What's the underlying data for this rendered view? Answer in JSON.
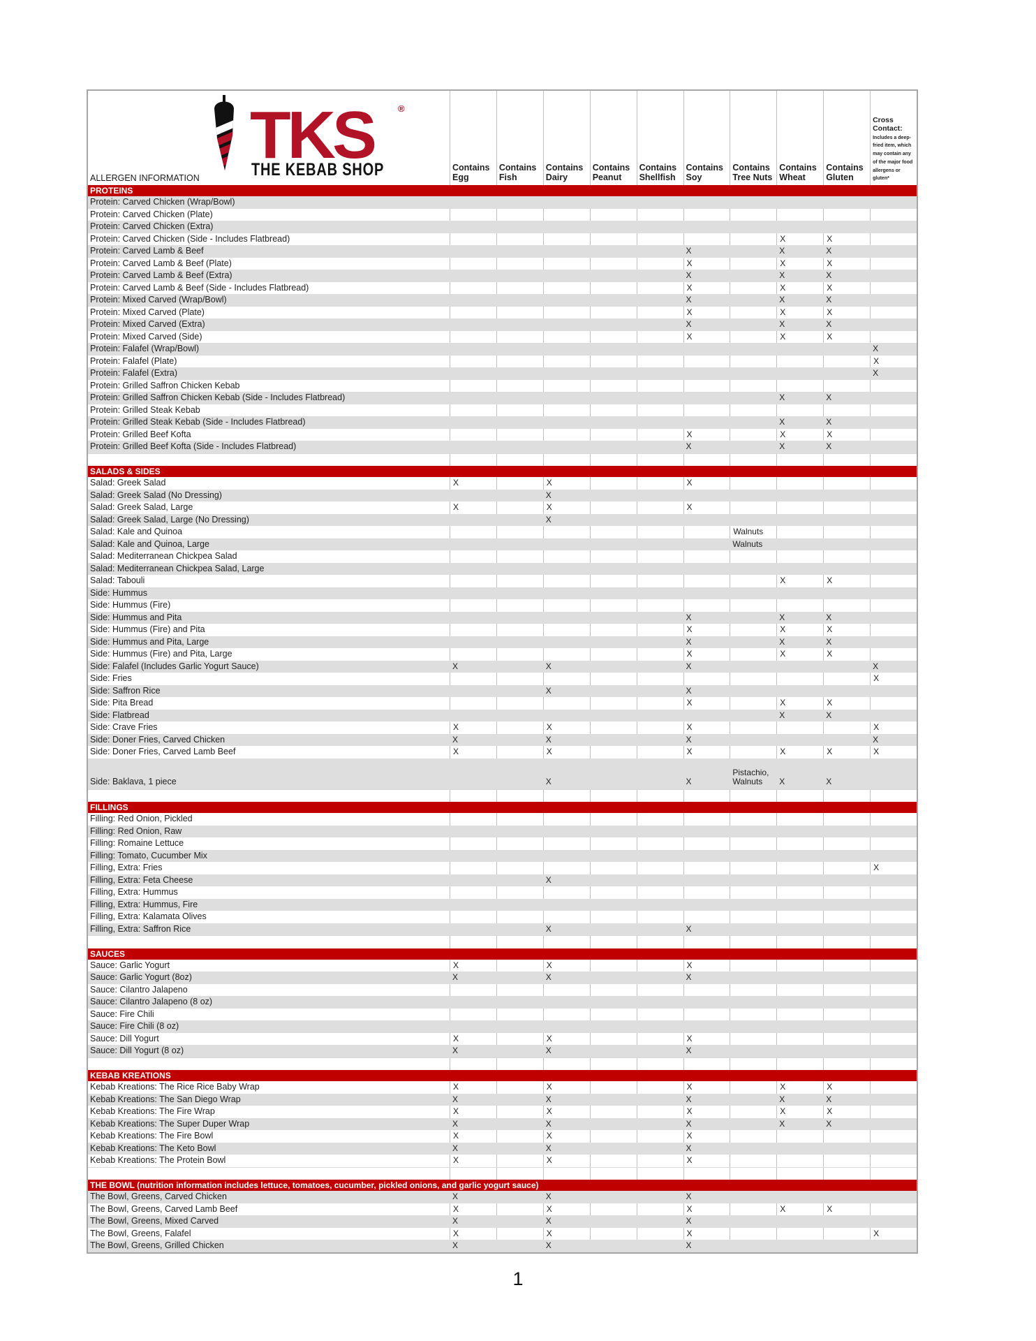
{
  "page": {
    "number": "1"
  },
  "colors": {
    "section_bar_red": "#c00000",
    "logo_red": "#b11226",
    "row_band_gray": "#dedede",
    "grid_line": "#bfbfbf",
    "outer_border": "#a6a6a6"
  },
  "logo": {
    "brand": "TKS",
    "reg": "®",
    "name": "THE KEBAB SHOP",
    "icon": "doner-kebab-icon"
  },
  "header": {
    "left_label": "ALLERGEN INFORMATION",
    "columns": [
      {
        "line1": "Contains",
        "line2": "Egg"
      },
      {
        "line1": "Contains",
        "line2": "Fish"
      },
      {
        "line1": "Contains",
        "line2": "Dairy"
      },
      {
        "line1": "Contains",
        "line2": "Peanut"
      },
      {
        "line1": "Contains",
        "line2": "Shellfish"
      },
      {
        "line1": "Contains",
        "line2": "Soy"
      },
      {
        "line1": "Contains",
        "line2": "Tree Nuts"
      },
      {
        "line1": "Contains",
        "line2": "Wheat"
      },
      {
        "line1": "Contains",
        "line2": "Gluten"
      }
    ],
    "cross": {
      "title": "Cross Contact:",
      "note": "Includes a deep-fried item, which may contain any of the major food allergens or gluten*"
    }
  },
  "allergen_keys": [
    "egg",
    "fish",
    "dairy",
    "peanut",
    "shellfish",
    "soy",
    "tree_nuts",
    "wheat",
    "gluten",
    "cross"
  ],
  "sections": [
    {
      "title": "PROTEINS",
      "start_shade": "gray",
      "rows": [
        {
          "label": "Protein: Carved Chicken (Wrap/Bowl)",
          "marks": {}
        },
        {
          "label": "Protein: Carved Chicken (Plate)",
          "marks": {}
        },
        {
          "label": "Protein: Carved Chicken (Extra)",
          "marks": {}
        },
        {
          "label": "Protein: Carved Chicken (Side - Includes Flatbread)",
          "marks": {
            "wheat": "X",
            "gluten": "X"
          }
        },
        {
          "label": "Protein: Carved Lamb & Beef",
          "marks": {
            "soy": "X",
            "wheat": "X",
            "gluten": "X"
          }
        },
        {
          "label": "Protein: Carved Lamb & Beef (Plate)",
          "marks": {
            "soy": "X",
            "wheat": "X",
            "gluten": "X"
          }
        },
        {
          "label": "Protein: Carved Lamb & Beef (Extra)",
          "marks": {
            "soy": "X",
            "wheat": "X",
            "gluten": "X"
          }
        },
        {
          "label": "Protein: Carved Lamb & Beef (Side - Includes Flatbread)",
          "marks": {
            "soy": "X",
            "wheat": "X",
            "gluten": "X"
          }
        },
        {
          "label": "Protein: Mixed Carved (Wrap/Bowl)",
          "marks": {
            "soy": "X",
            "wheat": "X",
            "gluten": "X"
          }
        },
        {
          "label": "Protein: Mixed Carved (Plate)",
          "marks": {
            "soy": "X",
            "wheat": "X",
            "gluten": "X"
          }
        },
        {
          "label": "Protein: Mixed Carved (Extra)",
          "marks": {
            "soy": "X",
            "wheat": "X",
            "gluten": "X"
          }
        },
        {
          "label": "Protein: Mixed Carved (Side)",
          "marks": {
            "soy": "X",
            "wheat": "X",
            "gluten": "X"
          }
        },
        {
          "label": "Protein: Falafel (Wrap/Bowl)",
          "marks": {
            "cross": "X"
          }
        },
        {
          "label": "Protein: Falafel (Plate)",
          "marks": {
            "cross": "X"
          }
        },
        {
          "label": "Protein: Falafel (Extra)",
          "marks": {
            "cross": "X"
          }
        },
        {
          "label": "Protein: Grilled Saffron Chicken Kebab",
          "marks": {}
        },
        {
          "label": "Protein: Grilled Saffron Chicken Kebab (Side - Includes Flatbread)",
          "marks": {
            "wheat": "X",
            "gluten": "X"
          }
        },
        {
          "label": "Protein: Grilled Steak Kebab",
          "marks": {}
        },
        {
          "label": "Protein: Grilled Steak Kebab (Side - Includes Flatbread)",
          "marks": {
            "wheat": "X",
            "gluten": "X"
          }
        },
        {
          "label": "Protein: Grilled Beef Kofta",
          "marks": {
            "soy": "X",
            "wheat": "X",
            "gluten": "X"
          }
        },
        {
          "label": "Protein: Grilled Beef Kofta (Side - Includes Flatbread)",
          "marks": {
            "soy": "X",
            "wheat": "X",
            "gluten": "X"
          }
        }
      ]
    },
    {
      "title": "SALADS & SIDES",
      "start_shade": "white",
      "rows": [
        {
          "label": "Salad: Greek Salad",
          "marks": {
            "egg": "X",
            "dairy": "X",
            "soy": "X"
          }
        },
        {
          "label": "Salad: Greek Salad (No Dressing)",
          "marks": {
            "dairy": "X"
          }
        },
        {
          "label": "Salad: Greek Salad, Large",
          "marks": {
            "egg": "X",
            "dairy": "X",
            "soy": "X"
          }
        },
        {
          "label": "Salad: Greek Salad, Large (No Dressing)",
          "marks": {
            "dairy": "X"
          }
        },
        {
          "label": "Salad: Kale and Quinoa",
          "marks": {
            "tree_nuts": "Walnuts"
          }
        },
        {
          "label": "Salad: Kale and Quinoa, Large",
          "marks": {
            "tree_nuts": "Walnuts"
          }
        },
        {
          "label": "Salad: Mediterranean Chickpea Salad",
          "marks": {}
        },
        {
          "label": "Salad: Mediterranean Chickpea Salad, Large",
          "marks": {}
        },
        {
          "label": "Salad: Tabouli",
          "marks": {
            "wheat": "X",
            "gluten": "X"
          }
        },
        {
          "label": "Side: Hummus",
          "marks": {}
        },
        {
          "label": "Side: Hummus (Fire)",
          "marks": {}
        },
        {
          "label": "Side: Hummus and Pita",
          "marks": {
            "soy": "X",
            "wheat": "X",
            "gluten": "X"
          }
        },
        {
          "label": "Side: Hummus (Fire) and Pita",
          "marks": {
            "soy": "X",
            "wheat": "X",
            "gluten": "X"
          }
        },
        {
          "label": "Side: Hummus and Pita, Large",
          "marks": {
            "soy": "X",
            "wheat": "X",
            "gluten": "X"
          }
        },
        {
          "label": "Side: Hummus (Fire) and Pita, Large",
          "marks": {
            "soy": "X",
            "wheat": "X",
            "gluten": "X"
          }
        },
        {
          "label": "Side: Falafel (Includes Garlic Yogurt Sauce)",
          "marks": {
            "egg": "X",
            "dairy": "X",
            "soy": "X",
            "cross": "X"
          }
        },
        {
          "label": "Side: Fries",
          "marks": {
            "cross": "X"
          }
        },
        {
          "label": "Side: Saffron Rice",
          "marks": {
            "dairy": "X",
            "soy": "X"
          }
        },
        {
          "label": "Side: Pita Bread",
          "marks": {
            "soy": "X",
            "wheat": "X",
            "gluten": "X"
          }
        },
        {
          "label": "Side: Flatbread",
          "marks": {
            "wheat": "X",
            "gluten": "X"
          }
        },
        {
          "label": "Side: Crave Fries",
          "marks": {
            "egg": "X",
            "dairy": "X",
            "soy": "X",
            "cross": "X"
          }
        },
        {
          "label": "Side: Doner Fries, Carved Chicken",
          "marks": {
            "egg": "X",
            "dairy": "X",
            "soy": "X",
            "cross": "X"
          }
        },
        {
          "label": "Side: Doner Fries, Carved Lamb Beef",
          "marks": {
            "egg": "X",
            "dairy": "X",
            "soy": "X",
            "wheat": "X",
            "gluten": "X",
            "cross": "X"
          }
        },
        {
          "label": "Side: Baklava, 1 piece",
          "tall": true,
          "marks": {
            "dairy": "X",
            "soy": "X",
            "tree_nuts": "Pistachio,\nWalnuts",
            "wheat": "X",
            "gluten": "X"
          }
        }
      ]
    },
    {
      "title": "FILLINGS",
      "start_shade": "white",
      "rows": [
        {
          "label": "Filling: Red Onion, Pickled",
          "marks": {}
        },
        {
          "label": "Filling: Red Onion, Raw",
          "marks": {}
        },
        {
          "label": "Filling: Romaine Lettuce",
          "marks": {}
        },
        {
          "label": "Filling: Tomato, Cucumber Mix",
          "marks": {}
        },
        {
          "label": "Filling, Extra: Fries",
          "marks": {
            "cross": "X"
          }
        },
        {
          "label": "Filling, Extra: Feta Cheese",
          "marks": {
            "dairy": "X"
          }
        },
        {
          "label": "Filling, Extra: Hummus",
          "marks": {}
        },
        {
          "label": "Filling, Extra: Hummus, Fire",
          "marks": {}
        },
        {
          "label": "Filling, Extra: Kalamata Olives",
          "marks": {}
        },
        {
          "label": "Filling, Extra: Saffron Rice",
          "marks": {
            "dairy": "X",
            "soy": "X"
          }
        }
      ]
    },
    {
      "title": "SAUCES",
      "start_shade": "white",
      "rows": [
        {
          "label": "Sauce: Garlic Yogurt",
          "marks": {
            "egg": "X",
            "dairy": "X",
            "soy": "X"
          }
        },
        {
          "label": "Sauce: Garlic Yogurt (8oz)",
          "marks": {
            "egg": "X",
            "dairy": "X",
            "soy": "X"
          }
        },
        {
          "label": "Sauce: Cilantro Jalapeno",
          "marks": {}
        },
        {
          "label": "Sauce: Cilantro Jalapeno (8 oz)",
          "marks": {}
        },
        {
          "label": "Sauce: Fire Chili",
          "marks": {}
        },
        {
          "label": "Sauce: Fire Chili (8 oz)",
          "marks": {}
        },
        {
          "label": "Sauce: Dill Yogurt",
          "marks": {
            "egg": "X",
            "dairy": "X",
            "soy": "X"
          }
        },
        {
          "label": "Sauce: Dill Yogurt (8 oz)",
          "marks": {
            "egg": "X",
            "dairy": "X",
            "soy": "X"
          }
        }
      ]
    },
    {
      "title": "KEBAB KREATIONS",
      "start_shade": "white",
      "rows": [
        {
          "label": "Kebab Kreations: The Rice Rice Baby Wrap",
          "marks": {
            "egg": "X",
            "dairy": "X",
            "soy": "X",
            "wheat": "X",
            "gluten": "X"
          }
        },
        {
          "label": "Kebab Kreations: The San Diego Wrap",
          "marks": {
            "egg": "X",
            "dairy": "X",
            "soy": "X",
            "wheat": "X",
            "gluten": "X"
          }
        },
        {
          "label": "Kebab Kreations: The Fire Wrap",
          "marks": {
            "egg": "X",
            "dairy": "X",
            "soy": "X",
            "wheat": "X",
            "gluten": "X"
          }
        },
        {
          "label": "Kebab Kreations: The Super Duper Wrap",
          "marks": {
            "egg": "X",
            "dairy": "X",
            "soy": "X",
            "wheat": "X",
            "gluten": "X"
          }
        },
        {
          "label": "Kebab Kreations: The Fire Bowl",
          "marks": {
            "egg": "X",
            "dairy": "X",
            "soy": "X"
          }
        },
        {
          "label": "Kebab Kreations: The Keto Bowl",
          "marks": {
            "egg": "X",
            "dairy": "X",
            "soy": "X"
          }
        },
        {
          "label": "Kebab Kreations: The Protein Bowl",
          "marks": {
            "egg": "X",
            "dairy": "X",
            "soy": "X"
          }
        }
      ]
    },
    {
      "title": "THE BOWL (nutrition information includes lettuce, tomatoes, cucumber, pickled onions, and garlic yogurt sauce)",
      "start_shade": "gray",
      "rows": [
        {
          "label": "The Bowl, Greens, Carved Chicken",
          "marks": {
            "egg": "X",
            "dairy": "X",
            "soy": "X"
          }
        },
        {
          "label": "The Bowl, Greens, Carved Lamb Beef",
          "marks": {
            "egg": "X",
            "dairy": "X",
            "soy": "X",
            "wheat": "X",
            "gluten": "X"
          }
        },
        {
          "label": "The Bowl, Greens, Mixed Carved",
          "marks": {
            "egg": "X",
            "dairy": "X",
            "soy": "X"
          }
        },
        {
          "label": "The Bowl, Greens, Falafel",
          "marks": {
            "egg": "X",
            "dairy": "X",
            "soy": "X",
            "cross": "X"
          }
        },
        {
          "label": "The Bowl, Greens, Grilled Chicken",
          "marks": {
            "egg": "X",
            "dairy": "X",
            "soy": "X"
          }
        }
      ]
    }
  ]
}
